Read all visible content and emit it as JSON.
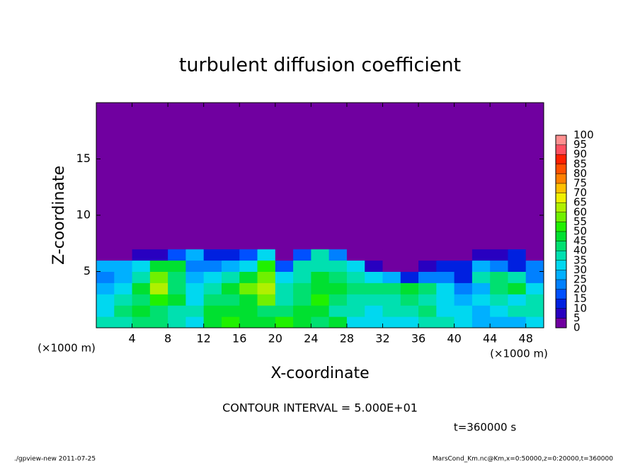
{
  "chart_data": {
    "type": "heatmap",
    "title": "turbulent diffusion coefficient",
    "xlabel": "X-coordinate",
    "ylabel": "Z-coordinate",
    "xunit": "(×1000 m)",
    "yunit": "(×1000 m)",
    "note": "CONTOUR INTERVAL = 5.000E+01",
    "time": "t=360000 s",
    "footer_left": "./gpview-new  2011-07-25",
    "footer_right": "MarsCond_Km.nc@Km,x=0:50000,z=0:20000,t=360000",
    "xlim": [
      0,
      50
    ],
    "ylim": [
      0,
      20
    ],
    "xticks": [
      4,
      8,
      12,
      16,
      20,
      24,
      28,
      32,
      36,
      40,
      44,
      48
    ],
    "yticks": [
      5,
      10,
      15
    ],
    "x_edges": [
      0,
      2,
      4,
      6,
      8,
      10,
      12,
      14,
      16,
      18,
      20,
      22,
      24,
      26,
      28,
      30,
      32,
      34,
      36,
      38,
      40,
      42,
      44,
      46,
      48,
      50
    ],
    "z_edges": [
      0,
      1,
      2,
      3,
      4,
      5,
      6,
      7,
      20
    ],
    "values": [
      [
        35,
        35,
        40,
        40,
        35,
        30,
        45,
        50,
        45,
        45,
        50,
        45,
        40,
        45,
        30,
        30,
        30,
        30,
        35,
        35,
        30,
        25,
        25,
        25,
        30
      ],
      [
        30,
        40,
        45,
        40,
        35,
        35,
        45,
        45,
        45,
        40,
        40,
        45,
        45,
        35,
        35,
        30,
        35,
        35,
        40,
        30,
        30,
        25,
        30,
        35,
        35
      ],
      [
        30,
        35,
        40,
        50,
        45,
        30,
        40,
        40,
        45,
        55,
        35,
        40,
        50,
        40,
        35,
        35,
        35,
        40,
        35,
        30,
        25,
        30,
        35,
        30,
        35
      ],
      [
        25,
        30,
        45,
        60,
        40,
        30,
        35,
        45,
        55,
        60,
        35,
        40,
        45,
        45,
        40,
        40,
        40,
        45,
        40,
        30,
        20,
        25,
        40,
        45,
        30
      ],
      [
        20,
        25,
        35,
        55,
        40,
        25,
        30,
        35,
        45,
        55,
        30,
        35,
        45,
        40,
        35,
        30,
        25,
        10,
        20,
        20,
        10,
        35,
        40,
        35,
        20
      ],
      [
        25,
        25,
        30,
        45,
        45,
        20,
        20,
        25,
        30,
        50,
        15,
        35,
        35,
        35,
        30,
        5,
        0,
        0,
        5,
        10,
        10,
        25,
        20,
        10,
        20
      ],
      [
        0,
        0,
        5,
        5,
        15,
        25,
        10,
        10,
        15,
        30,
        0,
        15,
        35,
        20,
        0,
        0,
        0,
        0,
        0,
        0,
        0,
        5,
        5,
        10,
        0
      ],
      [
        0,
        0,
        0,
        0,
        0,
        0,
        0,
        0,
        0,
        0,
        0,
        0,
        0,
        0,
        0,
        0,
        0,
        0,
        0,
        0,
        0,
        0,
        0,
        0,
        0
      ]
    ],
    "levels": [
      0,
      5,
      10,
      15,
      20,
      25,
      30,
      35,
      40,
      45,
      50,
      55,
      60,
      65,
      70,
      75,
      80,
      85,
      90,
      95,
      100
    ],
    "colors": [
      "#7000a0",
      "#2800c0",
      "#0020e0",
      "#0050ff",
      "#0080ff",
      "#00b0ff",
      "#00d8f0",
      "#00e0b0",
      "#00e070",
      "#00e030",
      "#20f000",
      "#70f000",
      "#b0f000",
      "#f0f000",
      "#ffc000",
      "#ff8000",
      "#ff5000",
      "#ff2000",
      "#ff5060",
      "#ff9090"
    ]
  }
}
